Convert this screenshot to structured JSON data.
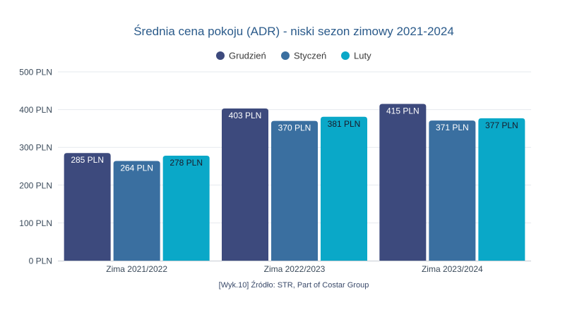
{
  "chart_data": {
    "type": "bar",
    "title": "Średnia cena pokoju (ADR) - niski sezon zimowy 2021-2024",
    "categories": [
      "Zima 2021/2022",
      "Zima 2022/2023",
      "Zima 2023/2024"
    ],
    "series": [
      {
        "name": "Grudzień",
        "color": "#3d4a7d",
        "label_color": "#ffffff",
        "values": [
          285,
          403,
          415
        ],
        "labels": [
          "285 PLN",
          "403 PLN",
          "415 PLN"
        ]
      },
      {
        "name": "Styczeń",
        "color": "#3a6fa0",
        "label_color": "#ffffff",
        "values": [
          264,
          370,
          371
        ],
        "labels": [
          "264 PLN",
          "370 PLN",
          "371 PLN"
        ]
      },
      {
        "name": "Luty",
        "color": "#0aa8c8",
        "label_color": "#1a1a2a",
        "values": [
          278,
          381,
          377
        ],
        "labels": [
          "278 PLN",
          "381 PLN",
          "377 PLN"
        ]
      }
    ],
    "ylim": [
      0,
      500
    ],
    "yticks": [
      0,
      100,
      200,
      300,
      400,
      500
    ],
    "ytick_labels": [
      "0 PLN",
      "100 PLN",
      "200 PLN",
      "300 PLN",
      "400 PLN",
      "500 PLN"
    ],
    "grid": true,
    "legend_position": "top-center",
    "source": "[Wyk.10] Źródło: STR, Part of Costar Group"
  }
}
